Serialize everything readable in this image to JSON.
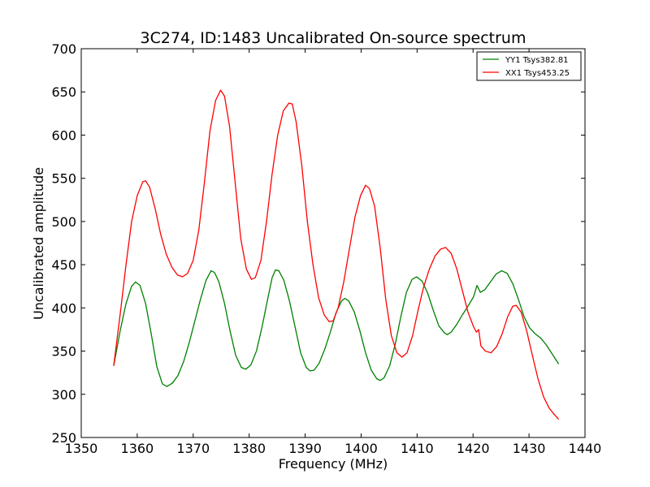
{
  "chart_data": {
    "type": "line",
    "title": "3C274, ID:1483 Uncalibrated On-source spectrum",
    "xlabel": "Frequency (MHz)",
    "ylabel": "Uncalibrated amplitude",
    "xlim": [
      1350,
      1440
    ],
    "ylim": [
      250,
      700
    ],
    "xticks": [
      1350,
      1360,
      1370,
      1380,
      1390,
      1400,
      1410,
      1420,
      1430,
      1440
    ],
    "yticks": [
      250,
      300,
      350,
      400,
      450,
      500,
      550,
      600,
      650,
      700
    ],
    "grid": false,
    "legend_position": "top-right",
    "series": [
      {
        "name": "YY1 Tsys382.81",
        "color": "#008000",
        "points": [
          [
            1355.8,
            333
          ],
          [
            1357,
            375
          ],
          [
            1358,
            405
          ],
          [
            1359,
            425
          ],
          [
            1359.7,
            430
          ],
          [
            1360.5,
            426
          ],
          [
            1361.5,
            405
          ],
          [
            1362.5,
            370
          ],
          [
            1363.5,
            332
          ],
          [
            1364.5,
            312
          ],
          [
            1365.3,
            309
          ],
          [
            1366.3,
            313
          ],
          [
            1367.3,
            322
          ],
          [
            1368.3,
            338
          ],
          [
            1369.3,
            360
          ],
          [
            1370.3,
            385
          ],
          [
            1371.3,
            410
          ],
          [
            1372.3,
            432
          ],
          [
            1373.2,
            443
          ],
          [
            1373.8,
            441
          ],
          [
            1374.6,
            430
          ],
          [
            1375.6,
            405
          ],
          [
            1376.6,
            373
          ],
          [
            1377.6,
            345
          ],
          [
            1378.6,
            331
          ],
          [
            1379.4,
            329
          ],
          [
            1380.3,
            334
          ],
          [
            1381.3,
            350
          ],
          [
            1382.3,
            378
          ],
          [
            1383.3,
            410
          ],
          [
            1384.1,
            435
          ],
          [
            1384.7,
            444
          ],
          [
            1385.3,
            443
          ],
          [
            1386.2,
            432
          ],
          [
            1387.2,
            408
          ],
          [
            1388.2,
            378
          ],
          [
            1389.2,
            348
          ],
          [
            1390.2,
            331
          ],
          [
            1390.9,
            327
          ],
          [
            1391.6,
            328
          ],
          [
            1392.5,
            336
          ],
          [
            1393.5,
            352
          ],
          [
            1394.5,
            372
          ],
          [
            1395.5,
            394
          ],
          [
            1396.5,
            408
          ],
          [
            1397.1,
            411
          ],
          [
            1397.8,
            408
          ],
          [
            1398.8,
            395
          ],
          [
            1399.8,
            373
          ],
          [
            1400.8,
            348
          ],
          [
            1401.8,
            328
          ],
          [
            1402.8,
            318
          ],
          [
            1403.4,
            316
          ],
          [
            1404.1,
            319
          ],
          [
            1405.1,
            333
          ],
          [
            1406.1,
            358
          ],
          [
            1407.1,
            390
          ],
          [
            1408.1,
            418
          ],
          [
            1409.1,
            433
          ],
          [
            1409.9,
            436
          ],
          [
            1410.9,
            431
          ],
          [
            1411.9,
            417
          ],
          [
            1412.9,
            397
          ],
          [
            1413.9,
            379
          ],
          [
            1414.9,
            371
          ],
          [
            1415.4,
            369
          ],
          [
            1416.1,
            372
          ],
          [
            1417.1,
            381
          ],
          [
            1418.1,
            392
          ],
          [
            1419.1,
            402
          ],
          [
            1420.1,
            413
          ],
          [
            1420.7,
            426
          ],
          [
            1421.3,
            418
          ],
          [
            1422.1,
            421
          ],
          [
            1423.1,
            430
          ],
          [
            1424.1,
            439
          ],
          [
            1425.1,
            443
          ],
          [
            1426.1,
            440
          ],
          [
            1427.1,
            428
          ],
          [
            1428.1,
            410
          ],
          [
            1429.1,
            390
          ],
          [
            1430.1,
            377
          ],
          [
            1431.1,
            370
          ],
          [
            1432.1,
            365
          ],
          [
            1433.1,
            357
          ],
          [
            1434.1,
            347
          ],
          [
            1435.3,
            335
          ]
        ]
      },
      {
        "name": "XX1 Tsys453.25",
        "color": "#ff0000",
        "points": [
          [
            1355.8,
            333
          ],
          [
            1357,
            395
          ],
          [
            1358,
            450
          ],
          [
            1359,
            500
          ],
          [
            1360,
            530
          ],
          [
            1361,
            546
          ],
          [
            1361.5,
            547
          ],
          [
            1362.2,
            540
          ],
          [
            1363.2,
            515
          ],
          [
            1364.2,
            485
          ],
          [
            1365.2,
            462
          ],
          [
            1366.2,
            447
          ],
          [
            1367.2,
            438
          ],
          [
            1368.1,
            436
          ],
          [
            1369,
            440
          ],
          [
            1370,
            455
          ],
          [
            1371,
            490
          ],
          [
            1372,
            545
          ],
          [
            1373,
            605
          ],
          [
            1374,
            640
          ],
          [
            1374.9,
            652
          ],
          [
            1375.6,
            645
          ],
          [
            1376.5,
            610
          ],
          [
            1377.5,
            545
          ],
          [
            1378.5,
            480
          ],
          [
            1379.5,
            445
          ],
          [
            1380.4,
            433
          ],
          [
            1381.1,
            435
          ],
          [
            1382.1,
            455
          ],
          [
            1383.1,
            500
          ],
          [
            1384.1,
            555
          ],
          [
            1385.1,
            600
          ],
          [
            1386.1,
            628
          ],
          [
            1387.1,
            637
          ],
          [
            1387.7,
            636
          ],
          [
            1388.4,
            615
          ],
          [
            1389.4,
            565
          ],
          [
            1390.4,
            500
          ],
          [
            1391.4,
            450
          ],
          [
            1392.4,
            412
          ],
          [
            1393.4,
            392
          ],
          [
            1394.3,
            384
          ],
          [
            1395,
            385
          ],
          [
            1395.9,
            400
          ],
          [
            1396.9,
            430
          ],
          [
            1397.9,
            468
          ],
          [
            1398.9,
            505
          ],
          [
            1399.9,
            530
          ],
          [
            1400.8,
            542
          ],
          [
            1401.5,
            538
          ],
          [
            1402.4,
            518
          ],
          [
            1403.4,
            470
          ],
          [
            1404.4,
            410
          ],
          [
            1405.4,
            368
          ],
          [
            1406.4,
            348
          ],
          [
            1407.3,
            343
          ],
          [
            1408.2,
            348
          ],
          [
            1409.2,
            368
          ],
          [
            1410.2,
            398
          ],
          [
            1411.2,
            425
          ],
          [
            1412.2,
            445
          ],
          [
            1413.2,
            460
          ],
          [
            1414.2,
            468
          ],
          [
            1415.1,
            470
          ],
          [
            1416.1,
            463
          ],
          [
            1417.1,
            445
          ],
          [
            1418.1,
            420
          ],
          [
            1419.1,
            395
          ],
          [
            1420.1,
            378
          ],
          [
            1420.6,
            372
          ],
          [
            1421,
            375
          ],
          [
            1421.4,
            356
          ],
          [
            1422.2,
            350
          ],
          [
            1423.2,
            348
          ],
          [
            1424.2,
            355
          ],
          [
            1425.2,
            370
          ],
          [
            1426.2,
            390
          ],
          [
            1427.1,
            402
          ],
          [
            1427.7,
            403
          ],
          [
            1428.6,
            395
          ],
          [
            1429.6,
            373
          ],
          [
            1430.6,
            345
          ],
          [
            1431.6,
            318
          ],
          [
            1432.6,
            297
          ],
          [
            1433.6,
            284
          ],
          [
            1434.6,
            276
          ],
          [
            1435.3,
            271
          ]
        ]
      }
    ]
  }
}
